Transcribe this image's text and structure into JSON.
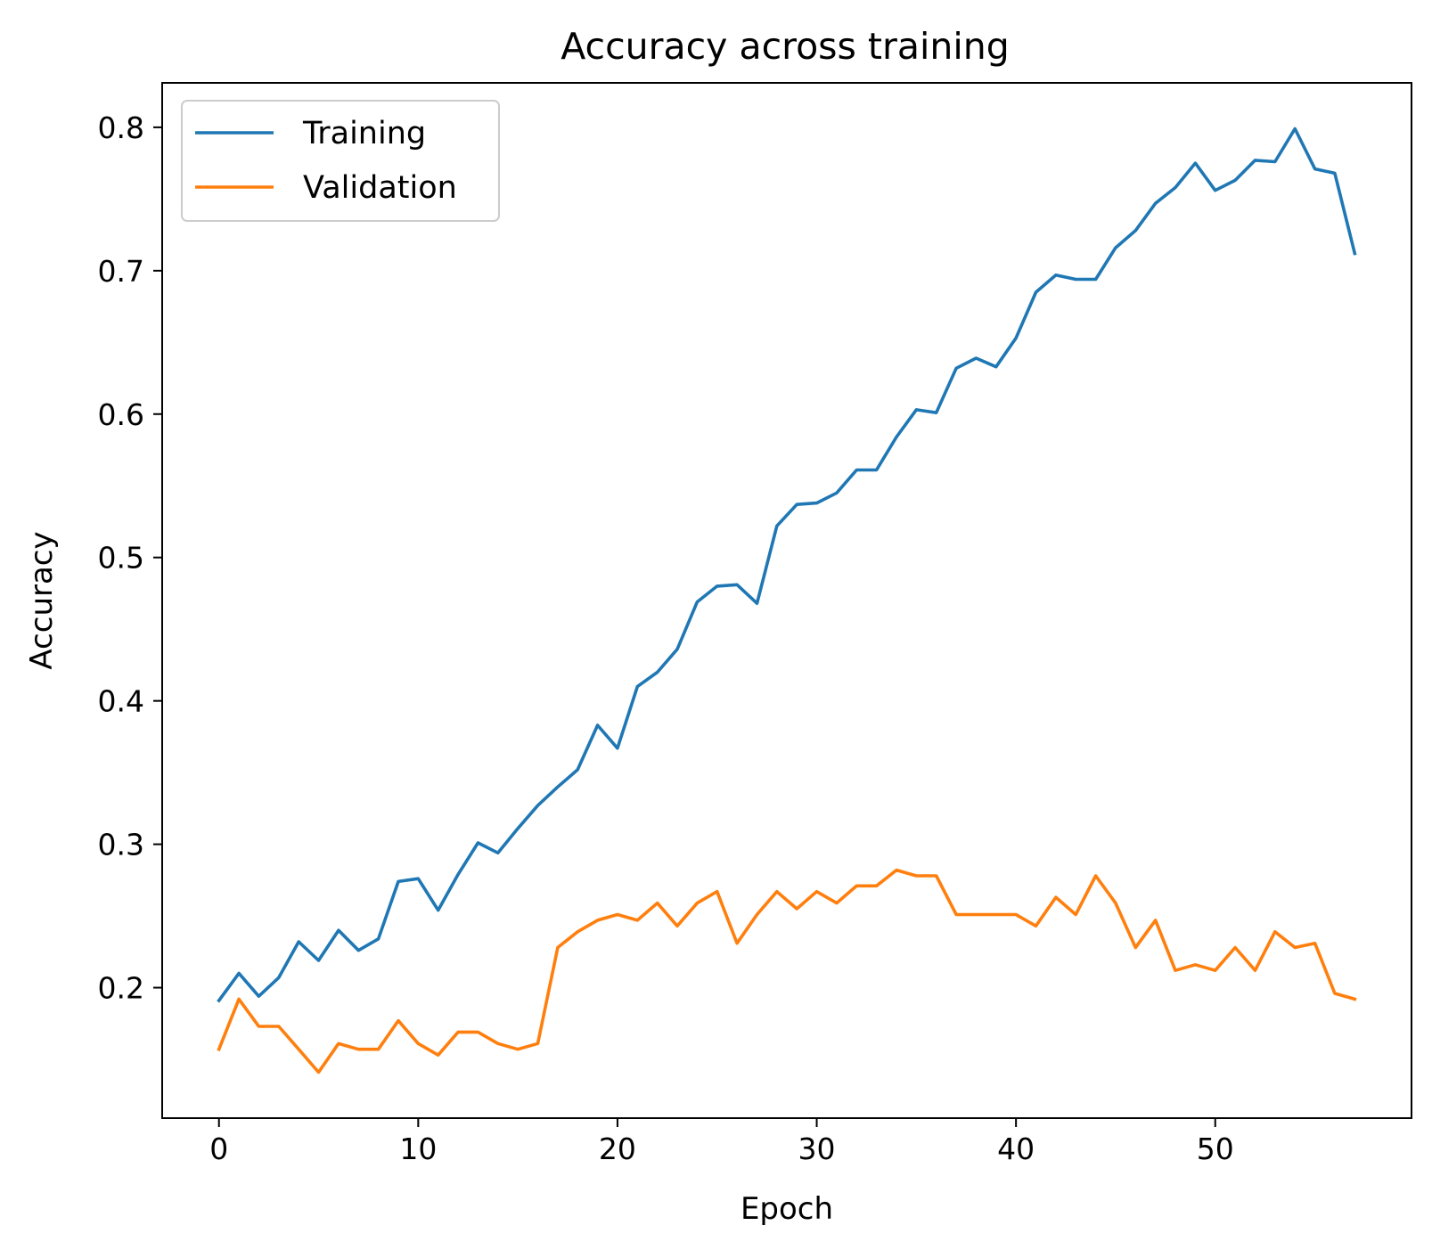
{
  "chart_data": {
    "type": "line",
    "title": "Accuracy across training",
    "xlabel": "Epoch",
    "ylabel": "Accuracy",
    "xlim": [
      -2.85,
      59.85
    ],
    "ylim": [
      0.109,
      0.831
    ],
    "xticks": [
      0,
      10,
      20,
      30,
      40,
      50
    ],
    "yticks": [
      0.2,
      0.3,
      0.4,
      0.5,
      0.6,
      0.7,
      0.8
    ],
    "grid": false,
    "legend": "upper left",
    "x": [
      0,
      1,
      2,
      3,
      4,
      5,
      6,
      7,
      8,
      9,
      10,
      11,
      12,
      13,
      14,
      15,
      16,
      17,
      18,
      19,
      20,
      21,
      22,
      23,
      24,
      25,
      26,
      27,
      28,
      29,
      30,
      31,
      32,
      33,
      34,
      35,
      36,
      37,
      38,
      39,
      40,
      41,
      42,
      43,
      44,
      45,
      46,
      47,
      48,
      49,
      50,
      51,
      52,
      53,
      54,
      55,
      56,
      57
    ],
    "series": [
      {
        "name": "Training",
        "color": "#1f77b4",
        "values": [
          0.191,
          0.21,
          0.194,
          0.207,
          0.232,
          0.219,
          0.24,
          0.226,
          0.234,
          0.274,
          0.276,
          0.254,
          0.279,
          0.301,
          0.294,
          0.311,
          0.327,
          0.34,
          0.352,
          0.383,
          0.367,
          0.41,
          0.42,
          0.436,
          0.469,
          0.48,
          0.481,
          0.468,
          0.522,
          0.537,
          0.538,
          0.545,
          0.561,
          0.561,
          0.584,
          0.603,
          0.601,
          0.632,
          0.639,
          0.633,
          0.653,
          0.685,
          0.697,
          0.694,
          0.694,
          0.716,
          0.728,
          0.747,
          0.758,
          0.775,
          0.756,
          0.763,
          0.777,
          0.776,
          0.799,
          0.771,
          0.768,
          0.712
        ]
      },
      {
        "name": "Validation",
        "color": "#ff7f0e",
        "values": [
          0.157,
          0.192,
          0.173,
          0.173,
          0.157,
          0.141,
          0.161,
          0.157,
          0.157,
          0.177,
          0.161,
          0.153,
          0.169,
          0.169,
          0.161,
          0.157,
          0.161,
          0.228,
          0.239,
          0.247,
          0.251,
          0.247,
          0.259,
          0.243,
          0.259,
          0.267,
          0.231,
          0.251,
          0.267,
          0.255,
          0.267,
          0.259,
          0.271,
          0.271,
          0.282,
          0.278,
          0.278,
          0.251,
          0.251,
          0.251,
          0.251,
          0.243,
          0.263,
          0.251,
          0.278,
          0.259,
          0.228,
          0.247,
          0.212,
          0.216,
          0.212,
          0.228,
          0.212,
          0.239,
          0.228,
          0.231,
          0.196,
          0.192
        ]
      }
    ]
  }
}
